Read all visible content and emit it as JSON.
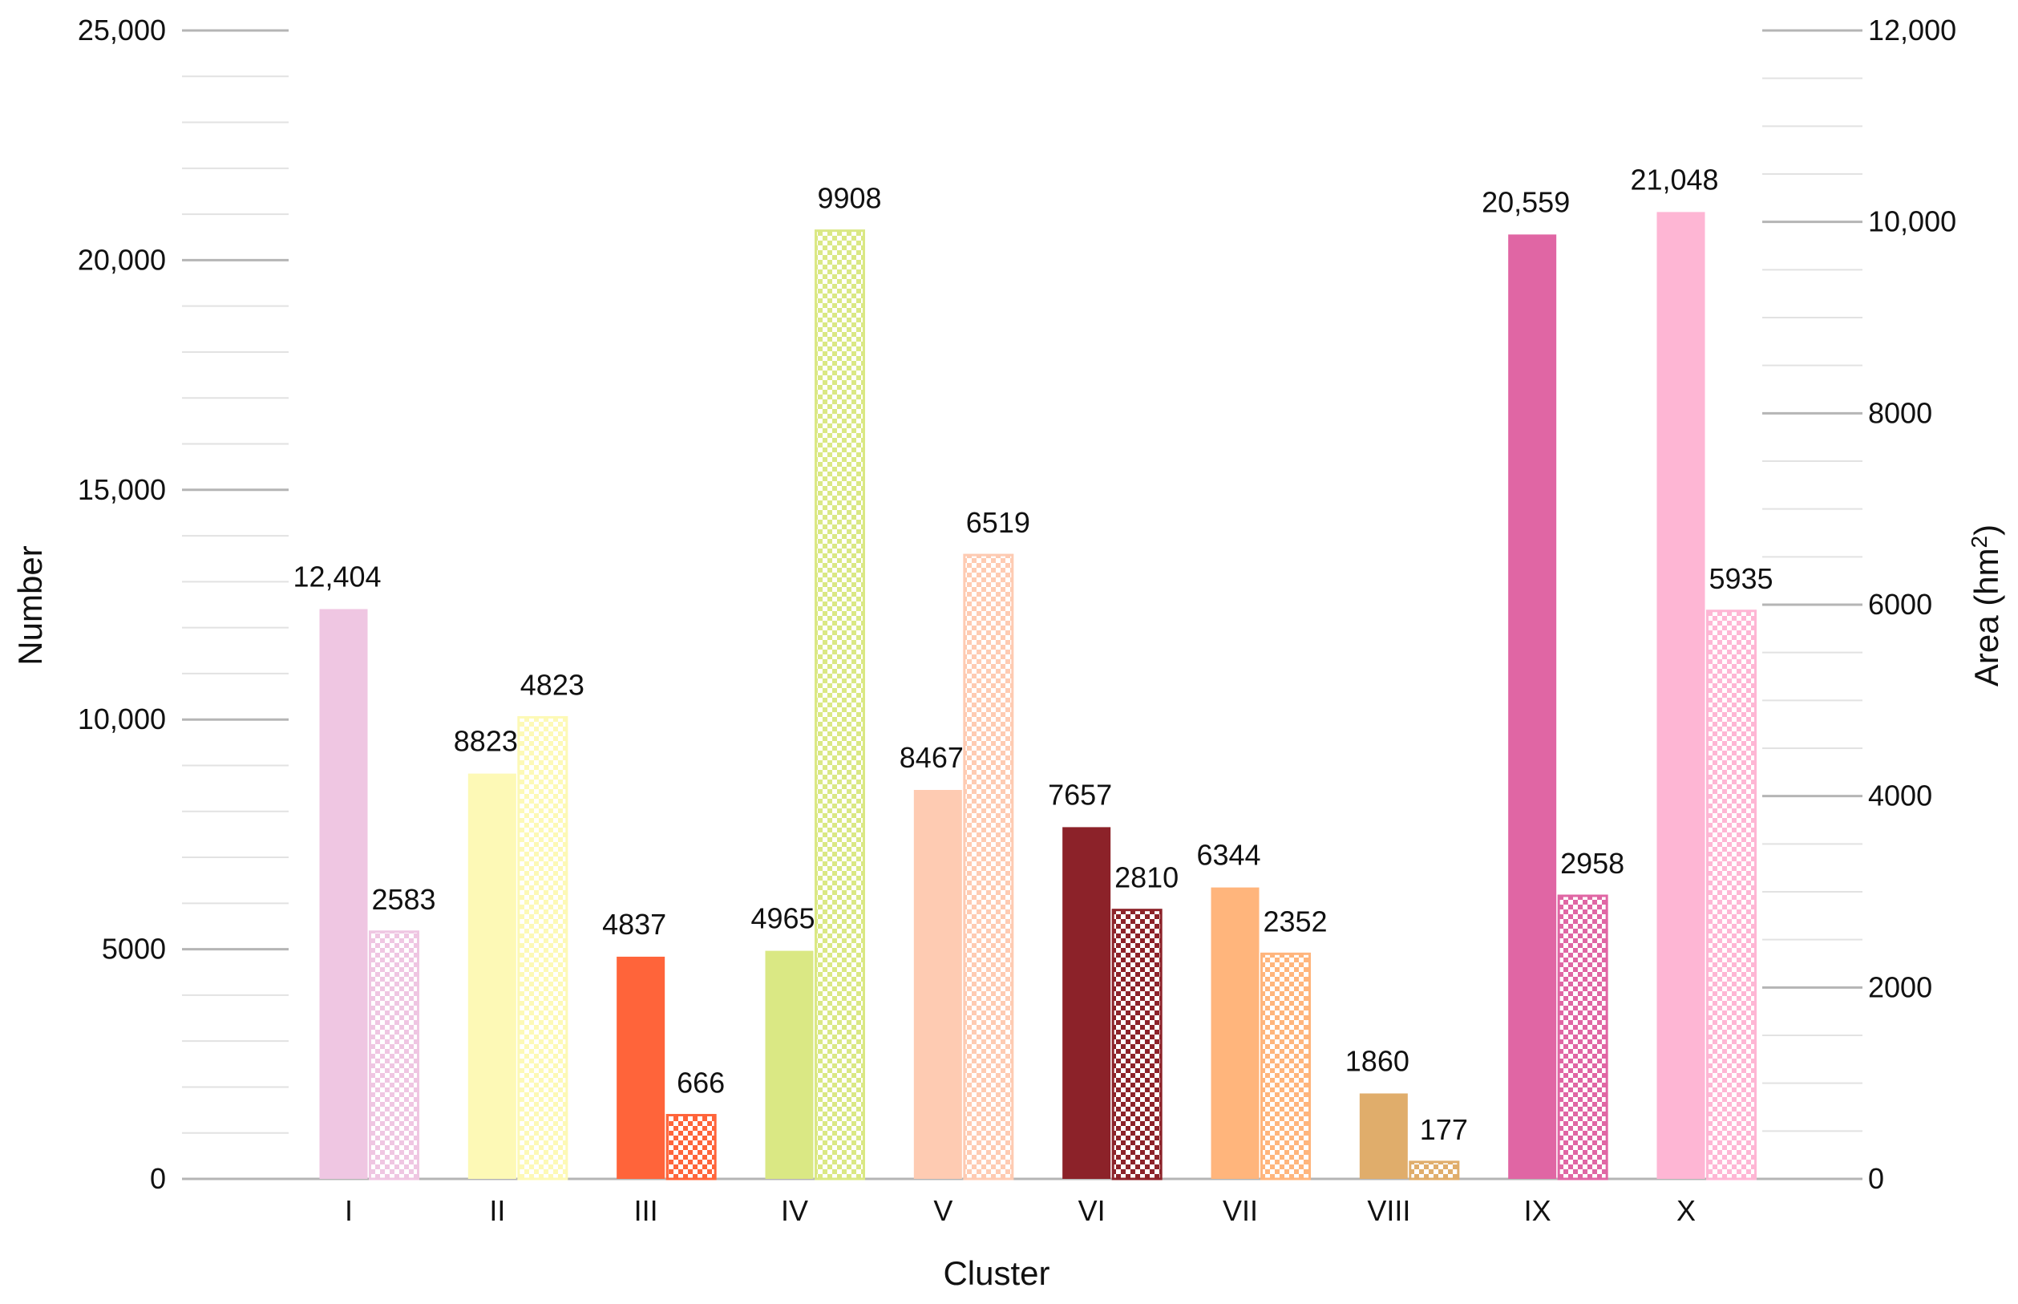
{
  "chart_data": {
    "type": "bar",
    "xlabel": "Cluster",
    "ylabel": "Number",
    "y2label_main": "Area (hm",
    "y2label_sup": "2",
    "y2label_tail": ")",
    "ylim": [
      0,
      25000
    ],
    "y2lim": [
      0,
      12000
    ],
    "yticks": [
      0,
      5000,
      10000,
      15000,
      20000,
      25000
    ],
    "yticklabels": [
      "0",
      "5000",
      "10,000",
      "15,000",
      "20,000",
      "25,000"
    ],
    "y2ticks": [
      0,
      2000,
      4000,
      6000,
      8000,
      10000,
      12000
    ],
    "y2ticklabels": [
      "0",
      "2000",
      "4000",
      "6000",
      "8000",
      "10,000",
      "12,000"
    ],
    "categories": [
      "I",
      "II",
      "III",
      "IV",
      "V",
      "VI",
      "VII",
      "VIII",
      "IX",
      "X"
    ],
    "series": [
      {
        "name": "Number",
        "axis": "left",
        "pattern": "solid",
        "values": [
          12404,
          8823,
          4837,
          4965,
          8467,
          7657,
          6344,
          1860,
          20559,
          21048
        ],
        "labels": [
          "12,404",
          "8823",
          "4837",
          "4965",
          "8467",
          "7657",
          "6344",
          "1860",
          "20,559",
          "21,048"
        ]
      },
      {
        "name": "Area",
        "axis": "right",
        "pattern": "checkered",
        "values": [
          2583,
          4823,
          666,
          9908,
          6519,
          2810,
          2352,
          177,
          2958,
          5935
        ],
        "labels": [
          "2583",
          "4823",
          "666",
          "9908",
          "6519",
          "2810",
          "2352",
          "177",
          "2958",
          "5935"
        ]
      }
    ],
    "colors": [
      "#EFC6E2",
      "#FDF9B6",
      "#FF643A",
      "#DAE884",
      "#FECBB2",
      "#8C2229",
      "#FFB57C",
      "#E0AD6B",
      "#E066A4",
      "#FEB6D4"
    ],
    "grid": true
  }
}
